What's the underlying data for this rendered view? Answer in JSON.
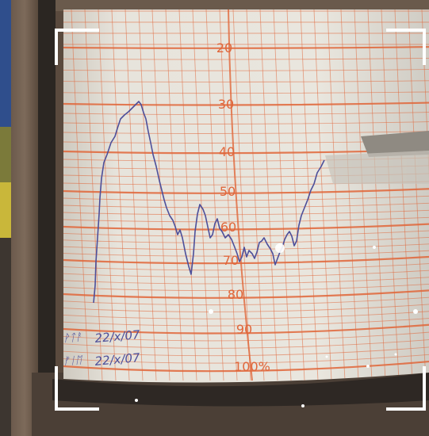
{
  "photo": {
    "chart_labels": [
      "20",
      "30",
      "40",
      "50",
      "60",
      "70",
      "80",
      "90",
      "100%"
    ],
    "handwriting": [
      "22/x/07",
      "22/x/07"
    ],
    "colors": {
      "paper": "#e6e3da",
      "grid": "#e0663a",
      "ink": "#4d4f9a",
      "frame": "#4a3c32",
      "drum_base": "#3a332e",
      "viewfinder": "#ffffff"
    }
  }
}
